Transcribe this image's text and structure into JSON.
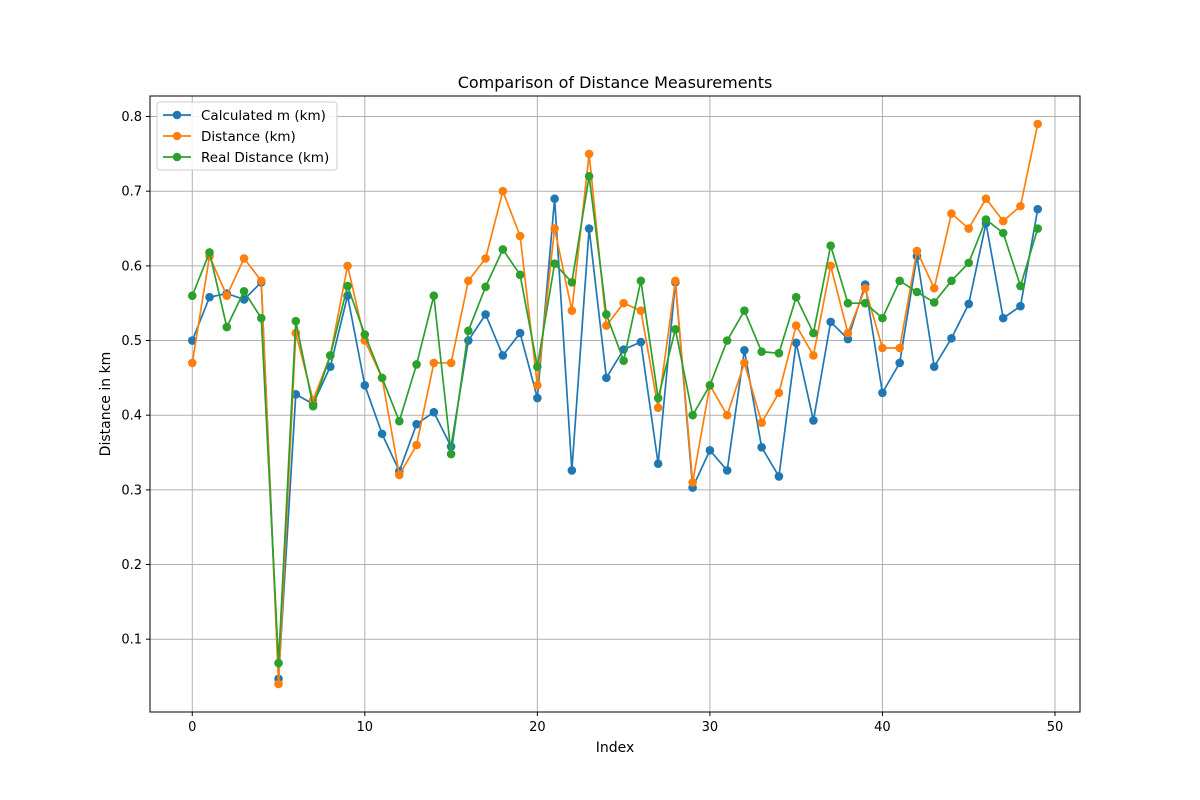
{
  "chart_data": {
    "type": "line",
    "title": "Comparison of Distance Measurements",
    "xlabel": "Index",
    "ylabel": "Distance in km",
    "xlim": [
      -2.45,
      51.45
    ],
    "ylim": [
      0.0025,
      0.8275
    ],
    "xticks": [
      0,
      10,
      20,
      30,
      40,
      50
    ],
    "yticks": [
      0.1,
      0.2,
      0.3,
      0.4,
      0.5,
      0.6,
      0.7,
      0.8
    ],
    "grid": true,
    "legend_position": "top-left",
    "x": [
      0,
      1,
      2,
      3,
      4,
      5,
      6,
      7,
      8,
      9,
      10,
      11,
      12,
      13,
      14,
      15,
      16,
      17,
      18,
      19,
      20,
      21,
      22,
      23,
      24,
      25,
      26,
      27,
      28,
      29,
      30,
      31,
      32,
      33,
      34,
      35,
      36,
      37,
      38,
      39,
      40,
      41,
      42,
      43,
      44,
      45,
      46,
      47,
      48,
      49
    ],
    "series": [
      {
        "name": "Calculated m (km)",
        "color": "#1f77b4",
        "values": [
          0.5,
          0.558,
          0.563,
          0.555,
          0.578,
          0.047,
          0.428,
          0.415,
          0.465,
          0.56,
          0.44,
          0.375,
          0.325,
          0.388,
          0.404,
          0.358,
          0.5,
          0.535,
          0.48,
          0.51,
          0.423,
          0.69,
          0.326,
          0.65,
          0.45,
          0.488,
          0.498,
          0.335,
          0.578,
          0.303,
          0.353,
          0.326,
          0.487,
          0.357,
          0.318,
          0.497,
          0.393,
          0.525,
          0.502,
          0.575,
          0.43,
          0.47,
          0.613,
          0.465,
          0.503,
          0.549,
          0.657,
          0.53,
          0.546,
          0.676
        ]
      },
      {
        "name": "Distance (km)",
        "color": "#ff7f0e",
        "values": [
          0.47,
          0.613,
          0.56,
          0.61,
          0.58,
          0.04,
          0.51,
          0.42,
          0.48,
          0.6,
          0.5,
          0.45,
          0.32,
          0.36,
          0.47,
          0.47,
          0.58,
          0.61,
          0.7,
          0.64,
          0.44,
          0.65,
          0.54,
          0.75,
          0.52,
          0.55,
          0.54,
          0.41,
          0.58,
          0.31,
          0.44,
          0.4,
          0.47,
          0.39,
          0.43,
          0.52,
          0.48,
          0.6,
          0.51,
          0.57,
          0.49,
          0.49,
          0.62,
          0.57,
          0.67,
          0.65,
          0.69,
          0.66,
          0.68,
          0.79
        ]
      },
      {
        "name": "Real Distance (km)",
        "color": "#2ca02c",
        "values": [
          0.56,
          0.618,
          0.518,
          0.566,
          0.53,
          0.068,
          0.526,
          0.412,
          0.48,
          0.573,
          0.508,
          0.45,
          0.392,
          0.468,
          0.56,
          0.348,
          0.513,
          0.572,
          0.622,
          0.588,
          0.465,
          0.603,
          0.578,
          0.72,
          0.535,
          0.473,
          0.58,
          0.423,
          0.515,
          0.4,
          0.44,
          0.5,
          0.54,
          0.485,
          0.483,
          0.558,
          0.51,
          0.627,
          0.55,
          0.55,
          0.53,
          0.58,
          0.565,
          0.551,
          0.58,
          0.604,
          0.662,
          0.644,
          0.573,
          0.65
        ]
      }
    ]
  }
}
